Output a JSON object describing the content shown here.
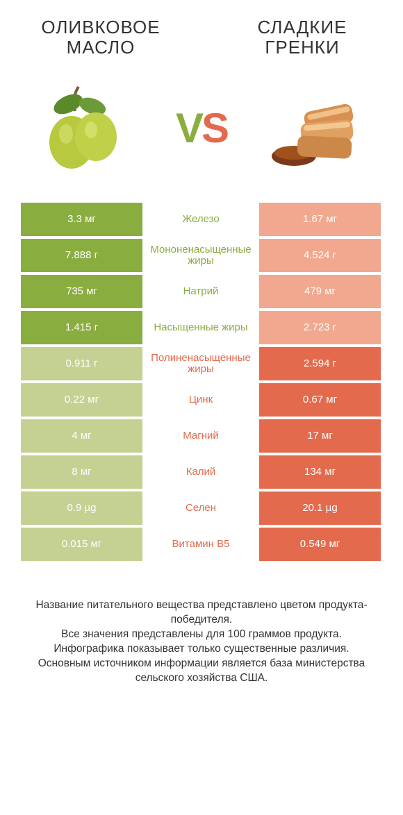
{
  "header": {
    "left_title": "ОЛИВКОВОЕ МАСЛО",
    "right_title": "СЛАДКИЕ ГРЕНКИ"
  },
  "vs": {
    "v": "V",
    "s": "S"
  },
  "colors": {
    "left_win": "#8aad3f",
    "left_lose": "#c4d192",
    "right_win": "#e36a4c",
    "right_lose": "#f1a88f",
    "mid_left": "#8aad3f",
    "mid_right": "#e36a4c"
  },
  "rows": [
    {
      "left": "3.3 мг",
      "mid": "Железо",
      "right": "1.67 мг",
      "winner": "left"
    },
    {
      "left": "7.888 г",
      "mid": "Мононенасыщенные жиры",
      "right": "4.524 г",
      "winner": "left"
    },
    {
      "left": "735 мг",
      "mid": "Натрий",
      "right": "479 мг",
      "winner": "left"
    },
    {
      "left": "1.415 г",
      "mid": "Насыщенные жиры",
      "right": "2.723 г",
      "winner": "left"
    },
    {
      "left": "0.911 г",
      "mid": "Полиненасыщенные жиры",
      "right": "2.594 г",
      "winner": "right"
    },
    {
      "left": "0.22 мг",
      "mid": "Цинк",
      "right": "0.67 мг",
      "winner": "right"
    },
    {
      "left": "4 мг",
      "mid": "Магний",
      "right": "17 мг",
      "winner": "right"
    },
    {
      "left": "8 мг",
      "mid": "Калий",
      "right": "134 мг",
      "winner": "right"
    },
    {
      "left": "0.9 µg",
      "mid": "Селен",
      "right": "20.1 µg",
      "winner": "right"
    },
    {
      "left": "0.015 мг",
      "mid": "Витамин B5",
      "right": "0.549 мг",
      "winner": "right"
    }
  ],
  "footer": {
    "line1": "Название питательного вещества представлено цветом продукта-победителя.",
    "line2": "Все значения представлены для 100 граммов продукта.",
    "line3": "Инфографика показывает только существенные различия.",
    "line4": "Основным источником информации является база министерства сельского хозяйства США."
  }
}
